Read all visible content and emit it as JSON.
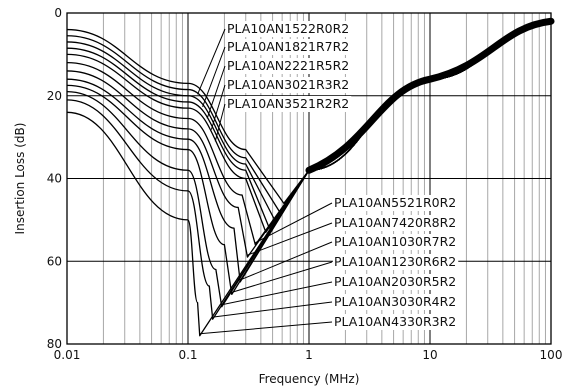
{
  "chart_data": {
    "type": "line",
    "xlabel": "Frequency (MHz)",
    "ylabel": "Insertion Loss (dB)",
    "x_scale": "log",
    "xlim": [
      0.01,
      100
    ],
    "ylim": [
      0,
      80
    ],
    "y_inverted": true,
    "grid": true,
    "x_ticks": [
      {
        "value": 0.01,
        "label": "0.01"
      },
      {
        "value": 0.1,
        "label": "0.1"
      },
      {
        "value": 1,
        "label": "1"
      },
      {
        "value": 10,
        "label": "10"
      },
      {
        "value": 100,
        "label": "100"
      }
    ],
    "y_ticks": [
      {
        "value": 0,
        "label": "0"
      },
      {
        "value": 20,
        "label": "20"
      },
      {
        "value": 40,
        "label": "40"
      },
      {
        "value": 60,
        "label": "60"
      },
      {
        "value": 80,
        "label": "80"
      }
    ],
    "colors": {
      "line": "#000000",
      "grid": "#000000",
      "minor_grid": "#a8a8a8",
      "background": "#ffffff"
    },
    "series": [
      {
        "name": "PLA10AN1522R0R2",
        "x": [
          0.01,
          0.1,
          0.3,
          0.62,
          1,
          10,
          100
        ],
        "y": [
          4,
          17,
          33,
          46,
          38,
          16,
          2
        ]
      },
      {
        "name": "PLA10AN1821R7R2",
        "x": [
          0.01,
          0.1,
          0.3,
          0.57,
          1,
          10,
          100
        ],
        "y": [
          5.5,
          18.5,
          35,
          48,
          38,
          16,
          2
        ]
      },
      {
        "name": "PLA10AN2221R5R2",
        "x": [
          0.01,
          0.1,
          0.3,
          0.52,
          1,
          10,
          100
        ],
        "y": [
          7,
          20,
          36.5,
          50,
          38,
          16,
          2
        ]
      },
      {
        "name": "PLA10AN3021R3R2",
        "x": [
          0.01,
          0.1,
          0.3,
          0.47,
          1,
          10,
          100
        ],
        "y": [
          8.5,
          21.5,
          38,
          52,
          38,
          16,
          2
        ]
      },
      {
        "name": "PLA10AN3521R2R2",
        "x": [
          0.01,
          0.1,
          0.3,
          0.44,
          1,
          10,
          100
        ],
        "y": [
          10,
          23,
          40,
          53,
          38,
          16,
          2
        ]
      },
      {
        "name": "PLA10AN5521R0R2",
        "x": [
          0.01,
          0.1,
          0.28,
          0.36,
          1,
          10,
          100
        ],
        "y": [
          12,
          25.5,
          44,
          56,
          38,
          16,
          2
        ]
      },
      {
        "name": "PLA10AN7420R8R2",
        "x": [
          0.01,
          0.1,
          0.26,
          0.31,
          1,
          10,
          100
        ],
        "y": [
          14,
          28,
          47,
          59,
          38,
          16,
          2
        ]
      },
      {
        "name": "PLA10AN1030R7R2",
        "x": [
          0.01,
          0.1,
          0.24,
          0.27,
          1,
          10,
          100
        ],
        "y": [
          16,
          30.5,
          52,
          65,
          38,
          16,
          2
        ]
      },
      {
        "name": "PLA10AN1230R6R2",
        "x": [
          0.01,
          0.1,
          0.2,
          0.23,
          1,
          10,
          100
        ],
        "y": [
          17.5,
          33,
          56,
          68,
          38,
          16,
          2
        ]
      },
      {
        "name": "PLA10AN2030R5R2",
        "x": [
          0.01,
          0.1,
          0.17,
          0.19,
          1,
          10,
          100
        ],
        "y": [
          19,
          38,
          62,
          71,
          38,
          16,
          2
        ]
      },
      {
        "name": "PLA10AN3030R4R2",
        "x": [
          0.01,
          0.1,
          0.15,
          0.16,
          1,
          10,
          100
        ],
        "y": [
          21,
          43,
          66,
          74,
          38,
          16,
          2
        ]
      },
      {
        "name": "PLA10AN4330R3R2",
        "x": [
          0.01,
          0.1,
          0.12,
          0.125,
          1,
          10,
          100
        ],
        "y": [
          24,
          50,
          70,
          78,
          38,
          16,
          2
        ]
      }
    ]
  }
}
